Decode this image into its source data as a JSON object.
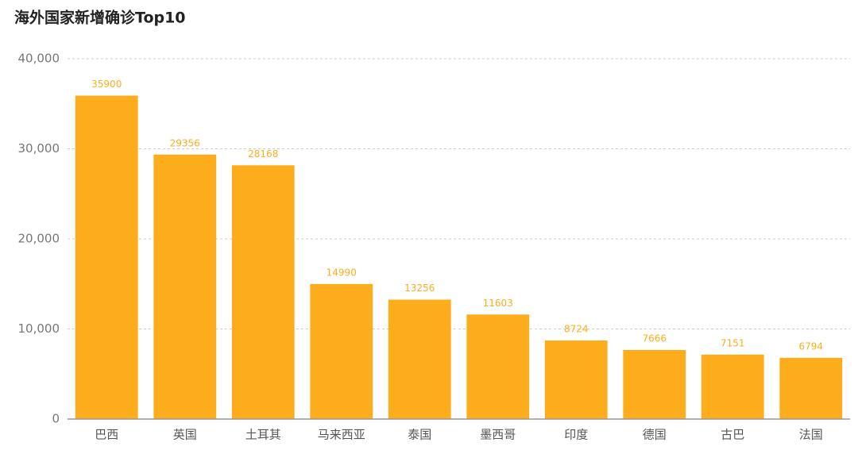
{
  "chart_data": {
    "type": "bar",
    "title": "海外国家新增确诊Top10",
    "categories": [
      "巴西",
      "英国",
      "土耳其",
      "马来西亚",
      "泰国",
      "墨西哥",
      "印度",
      "德国",
      "古巴",
      "法国"
    ],
    "values": [
      35900,
      29356,
      28168,
      14990,
      13256,
      11603,
      8724,
      7666,
      7151,
      6794
    ],
    "color": "#fdad1b",
    "ylim": [
      0,
      40000
    ],
    "yticks": [
      0,
      {
        "value": 10000,
        "label": "10,000"
      },
      {
        "value": 20000,
        "label": "20,000"
      },
      {
        "value": 30000,
        "label": "30,000"
      },
      {
        "value": 40000,
        "label": "40,000"
      }
    ],
    "grid": true
  }
}
